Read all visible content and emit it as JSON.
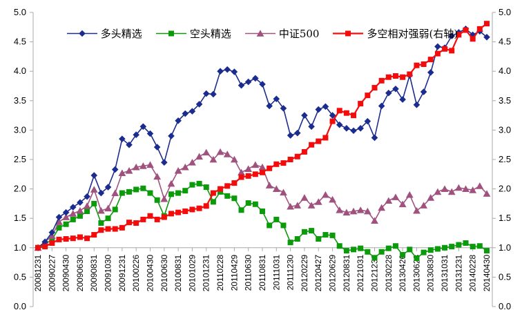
{
  "chart_data": {
    "type": "line",
    "title": "",
    "n_points": 65,
    "label_every": 2,
    "x_tick_labels": [
      "20081231",
      "20090227",
      "20090430",
      "20090630",
      "20090831",
      "20091030",
      "20091231",
      "20100226",
      "20100430",
      "20100630",
      "20100831",
      "20101029",
      "20101231",
      "20110228",
      "20110429",
      "20110630",
      "20110831",
      "20111031",
      "20111230",
      "20120229",
      "20120427",
      "20120629",
      "20120831",
      "20121031",
      "20121231",
      "20130228",
      "20130426",
      "20130628",
      "20130830",
      "20131031",
      "20131231",
      "20140228",
      "20140430"
    ],
    "y_axis": {
      "min": 0,
      "max": 5,
      "step": 0.5,
      "tick_labels": [
        "0.0",
        "0.5",
        "1.0",
        "1.5",
        "2.0",
        "2.5",
        "3.0",
        "3.5",
        "4.0",
        "4.5",
        "5.0"
      ],
      "both_sides": true,
      "x_axis_crosses_at": 1.0,
      "grid": false
    },
    "legend_position": "top-center",
    "axis_color": "#a8a8a8",
    "text_color": "#000000",
    "series": [
      {
        "id": "kongtou",
        "name": "空头精选",
        "color": "#0a9a0a",
        "marker": "square",
        "line_width": 1.6,
        "values": [
          1.0,
          1.06,
          1.14,
          1.34,
          1.4,
          1.48,
          1.54,
          1.62,
          1.75,
          1.42,
          1.5,
          1.65,
          1.93,
          1.95,
          1.99,
          2.01,
          1.93,
          1.81,
          1.54,
          1.91,
          1.93,
          1.97,
          2.07,
          2.09,
          2.03,
          1.78,
          1.95,
          1.88,
          1.84,
          1.64,
          1.76,
          1.74,
          1.62,
          1.38,
          1.48,
          1.38,
          1.09,
          1.15,
          1.27,
          1.29,
          1.15,
          1.22,
          1.21,
          1.03,
          0.95,
          0.97,
          0.99,
          0.93,
          0.83,
          0.93,
          0.99,
          1.03,
          0.88,
          0.97,
          0.82,
          0.92,
          0.96,
          0.98,
          1.0,
          1.02,
          1.05,
          1.08,
          1.02,
          1.03,
          0.95
        ]
      },
      {
        "id": "zhongzheng500",
        "name": "中证500",
        "color": "#a0527e",
        "marker": "triangle",
        "line_width": 1.6,
        "values": [
          1.0,
          1.1,
          1.2,
          1.44,
          1.52,
          1.58,
          1.63,
          1.71,
          1.99,
          1.63,
          1.67,
          1.93,
          2.27,
          2.31,
          2.37,
          2.39,
          2.41,
          2.21,
          1.83,
          2.09,
          2.31,
          2.37,
          2.45,
          2.55,
          2.62,
          2.5,
          2.63,
          2.59,
          2.5,
          2.28,
          2.34,
          2.41,
          2.37,
          2.06,
          2.0,
          1.94,
          1.7,
          1.72,
          1.85,
          1.72,
          1.78,
          1.9,
          1.82,
          1.64,
          1.6,
          1.62,
          1.64,
          1.62,
          1.46,
          1.68,
          1.8,
          1.86,
          1.74,
          1.9,
          1.63,
          1.72,
          1.85,
          1.95,
          2.0,
          1.95,
          2.02,
          2.0,
          1.98,
          2.05,
          1.92
        ]
      },
      {
        "id": "duotou",
        "name": "多头精选",
        "color": "#1b2c8f",
        "marker": "diamond",
        "line_width": 1.6,
        "values": [
          1.0,
          1.1,
          1.26,
          1.52,
          1.6,
          1.69,
          1.77,
          1.87,
          2.23,
          1.93,
          2.03,
          2.33,
          2.85,
          2.75,
          2.92,
          3.06,
          2.94,
          2.71,
          2.45,
          2.9,
          3.16,
          3.28,
          3.32,
          3.44,
          3.62,
          3.61,
          4.0,
          4.03,
          3.99,
          3.76,
          3.82,
          3.88,
          3.78,
          3.41,
          3.53,
          3.37,
          2.91,
          2.95,
          3.25,
          3.06,
          3.35,
          3.4,
          3.25,
          3.09,
          3.03,
          2.99,
          3.03,
          3.15,
          2.87,
          3.41,
          3.63,
          3.7,
          3.52,
          3.93,
          3.43,
          3.65,
          3.98,
          4.42,
          4.4,
          4.6,
          4.66,
          4.72,
          4.62,
          4.68,
          4.58
        ]
      },
      {
        "id": "duokong",
        "name": "多空相对强弱(右轴)",
        "color": "#f20c0c",
        "marker": "square",
        "line_width": 2.2,
        "axis": "right",
        "values": [
          1.0,
          1.02,
          1.08,
          1.14,
          1.15,
          1.16,
          1.18,
          1.16,
          1.22,
          1.3,
          1.32,
          1.32,
          1.34,
          1.43,
          1.42,
          1.48,
          1.54,
          1.48,
          1.52,
          1.58,
          1.6,
          1.62,
          1.65,
          1.67,
          1.71,
          1.93,
          2.0,
          2.05,
          2.1,
          2.2,
          2.22,
          2.25,
          2.28,
          2.35,
          2.42,
          2.44,
          2.5,
          2.55,
          2.63,
          2.75,
          2.81,
          2.87,
          3.15,
          3.33,
          3.29,
          3.25,
          3.45,
          3.59,
          3.72,
          3.84,
          3.9,
          3.92,
          3.9,
          3.95,
          4.1,
          4.12,
          4.2,
          4.3,
          4.38,
          4.35,
          4.62,
          4.7,
          4.55,
          4.72,
          4.81
        ]
      }
    ],
    "legend_order": [
      "duotou",
      "kongtou",
      "zhongzheng500",
      "duokong"
    ]
  }
}
